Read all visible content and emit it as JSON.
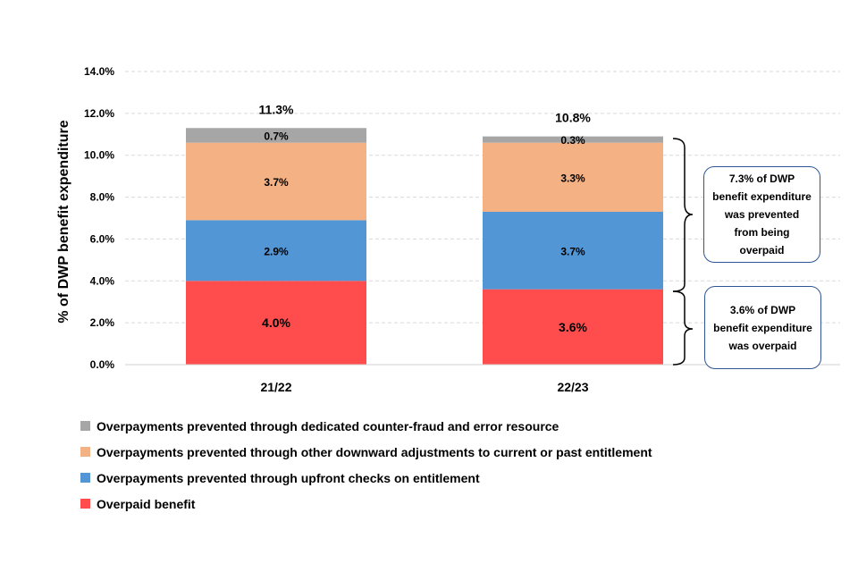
{
  "chart_data": {
    "type": "bar",
    "stacked": true,
    "ylabel": "% of DWP benefit expenditure",
    "ylim": [
      0,
      14
    ],
    "y_ticks": [
      "0.0%",
      "2.0%",
      "4.0%",
      "6.0%",
      "8.0%",
      "10.0%",
      "12.0%",
      "14.0%"
    ],
    "categories": [
      "21/22",
      "22/23"
    ],
    "totals": [
      "11.3%",
      "10.8%"
    ],
    "series": [
      {
        "name": "Overpaid benefit",
        "values": [
          4.0,
          3.6
        ],
        "labels": [
          "4.0%",
          "3.6%"
        ],
        "color": "#ff4d4d"
      },
      {
        "name": "Overpayments prevented through upfront checks on entitlement",
        "values": [
          2.9,
          3.7
        ],
        "labels": [
          "2.9%",
          "3.7%"
        ],
        "color": "#5296d6"
      },
      {
        "name": "Overpayments prevented through other downward adjustments to current or past entitlement",
        "values": [
          3.7,
          3.3
        ],
        "labels": [
          "3.7%",
          "3.3%"
        ],
        "color": "#f4b183"
      },
      {
        "name": "Overpayments prevented through dedicated counter-fraud and error resource",
        "values": [
          0.7,
          0.3
        ],
        "labels": [
          "0.7%",
          "0.3%"
        ],
        "color": "#a6a6a6"
      }
    ],
    "legend_order": [
      3,
      2,
      1,
      0
    ],
    "annotations": [
      "7.3% of  DWP benefit expenditure was prevented from being overpaid",
      "3.6% of  DWP benefit expenditure was overpaid"
    ],
    "grid": true
  }
}
